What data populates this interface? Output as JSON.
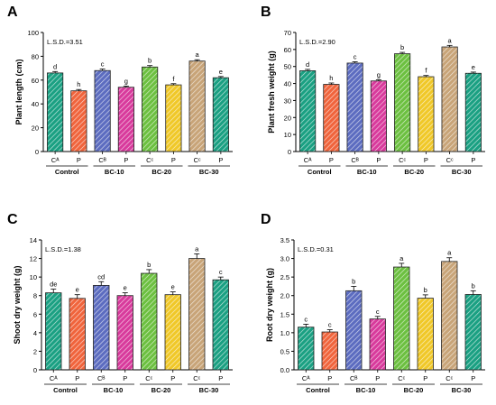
{
  "chart_data": [
    {
      "panel": "A",
      "type": "bar",
      "ylabel": "Plant length (cm)",
      "ylim": [
        0,
        100
      ],
      "yticks": [
        0,
        20,
        40,
        60,
        80,
        100
      ],
      "lsd": "L.S.D.=3.51",
      "categories": [
        "Cᴬ",
        "P",
        "Cᴮ",
        "P",
        "Cᶜ",
        "P",
        "Cᶜ",
        "P"
      ],
      "groups": [
        "Control",
        "BC-10",
        "BC-20",
        "BC-30"
      ],
      "values": [
        66,
        51,
        68,
        54,
        71,
        56,
        76,
        62
      ],
      "errors": [
        1.2,
        1.1,
        1.3,
        1.0,
        1.2,
        1.0,
        1.1,
        1.0
      ],
      "letters": [
        "d",
        "h",
        "c",
        "g",
        "b",
        "f",
        "a",
        "e"
      ],
      "bar_colors": [
        "#1aa082",
        "#f0643c",
        "#5c6cc0",
        "#d83a9c",
        "#6cc040",
        "#f0c828",
        "#c8a478",
        "#1aa082"
      ]
    },
    {
      "panel": "B",
      "type": "bar",
      "ylabel": "Plant fresh weight (g)",
      "ylim": [
        0,
        70
      ],
      "yticks": [
        0,
        10,
        20,
        30,
        40,
        50,
        60,
        70
      ],
      "lsd": "L.S.D.=2.90",
      "categories": [
        "Cᴬ",
        "P",
        "Cᴮ",
        "P",
        "Cᶜ",
        "P",
        "Cᶜ",
        "P"
      ],
      "groups": [
        "Control",
        "BC-10",
        "BC-20",
        "BC-30"
      ],
      "values": [
        47.5,
        39.5,
        52,
        41.5,
        57.5,
        44,
        61.5,
        46
      ],
      "errors": [
        0.8,
        0.8,
        0.8,
        0.7,
        0.8,
        0.7,
        0.9,
        0.7
      ],
      "letters": [
        "d",
        "h",
        "c",
        "g",
        "b",
        "f",
        "a",
        "e"
      ],
      "bar_colors": [
        "#1aa082",
        "#f0643c",
        "#5c6cc0",
        "#d83a9c",
        "#6cc040",
        "#f0c828",
        "#c8a478",
        "#1aa082"
      ]
    },
    {
      "panel": "C",
      "type": "bar",
      "ylabel": "Shoot dry weight (g)",
      "ylim": [
        0,
        14
      ],
      "yticks": [
        0,
        2,
        4,
        6,
        8,
        10,
        12,
        14
      ],
      "lsd": "L.S.D.=1.38",
      "categories": [
        "Cᴬ",
        "P",
        "Cᴮ",
        "P",
        "Cᶜ",
        "P",
        "Cᶜ",
        "P"
      ],
      "groups": [
        "Control",
        "BC-10",
        "BC-20",
        "BC-30"
      ],
      "values": [
        8.3,
        7.7,
        9.1,
        8.0,
        10.4,
        8.1,
        12.0,
        9.7
      ],
      "errors": [
        0.4,
        0.4,
        0.4,
        0.3,
        0.4,
        0.3,
        0.5,
        0.3
      ],
      "letters": [
        "de",
        "e",
        "cd",
        "e",
        "b",
        "e",
        "a",
        "c"
      ],
      "bar_colors": [
        "#1aa082",
        "#f0643c",
        "#5c6cc0",
        "#d83a9c",
        "#6cc040",
        "#f0c828",
        "#c8a478",
        "#1aa082"
      ]
    },
    {
      "panel": "D",
      "type": "bar",
      "ylabel": "Root dry weight (g)",
      "ylim": [
        0,
        3.5
      ],
      "yticks": [
        0.0,
        0.5,
        1.0,
        1.5,
        2.0,
        2.5,
        3.0,
        3.5
      ],
      "lsd": "L.S.D.=0.31",
      "categories": [
        "Cᴬ",
        "P",
        "Cᴮ",
        "P",
        "Cᶜ",
        "P",
        "Cᶜ",
        "P"
      ],
      "groups": [
        "Control",
        "BC-10",
        "BC-20",
        "BC-30"
      ],
      "values": [
        1.15,
        1.02,
        2.13,
        1.37,
        2.77,
        1.93,
        2.92,
        2.03
      ],
      "errors": [
        0.08,
        0.06,
        0.12,
        0.07,
        0.1,
        0.09,
        0.1,
        0.1
      ],
      "letters": [
        "c",
        "c",
        "b",
        "c",
        "a",
        "b",
        "a",
        "b"
      ],
      "bar_colors": [
        "#1aa082",
        "#f0643c",
        "#5c6cc0",
        "#d83a9c",
        "#6cc040",
        "#f0c828",
        "#c8a478",
        "#1aa082"
      ]
    }
  ]
}
